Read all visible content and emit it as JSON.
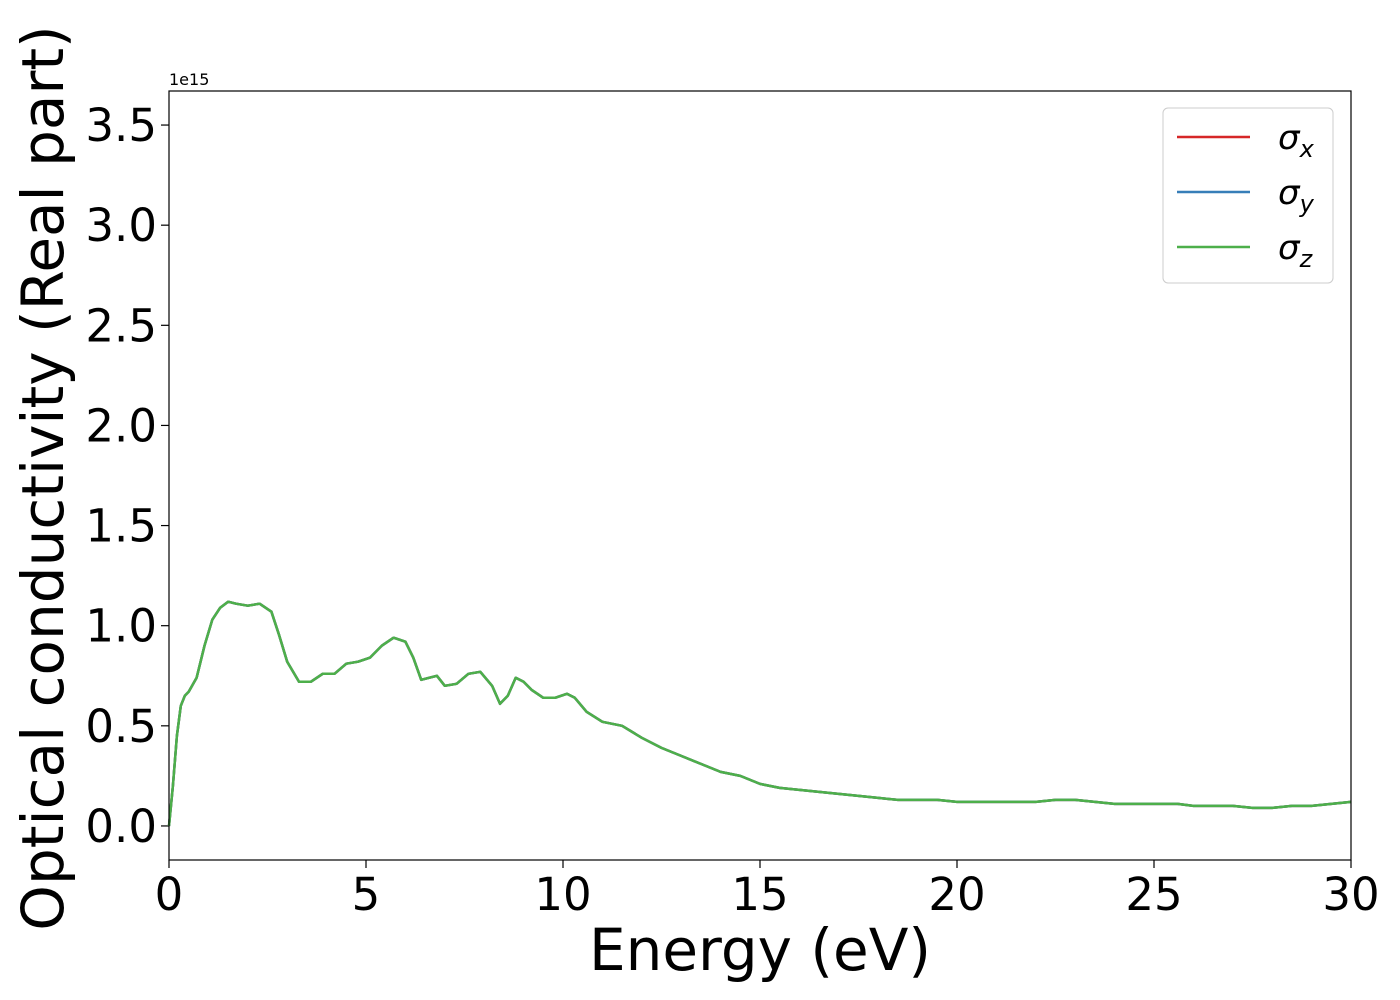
{
  "chart_data": {
    "type": "line",
    "xlabel": "Energy (eV)",
    "ylabel": "Optical conductivity (Real part)",
    "y_offset_text": "1e15",
    "y_scale": 1000000000000000.0,
    "xlim": [
      0,
      30
    ],
    "ylim": [
      -0.17,
      3.67
    ],
    "x_ticks": [
      0,
      5,
      10,
      15,
      20,
      25,
      30
    ],
    "x_tick_labels": [
      "0",
      "5",
      "10",
      "15",
      "20",
      "25",
      "30"
    ],
    "y_ticks": [
      0.0,
      0.5,
      1.0,
      1.5,
      2.0,
      2.5,
      3.0,
      3.5
    ],
    "y_tick_labels": [
      "0.0",
      "0.5",
      "1.0",
      "1.5",
      "2.0",
      "2.5",
      "3.0",
      "3.5"
    ],
    "grid": false,
    "legend_position": "top-right",
    "x": [
      0,
      0.1,
      0.2,
      0.3,
      0.4,
      0.5,
      0.7,
      0.9,
      1.1,
      1.3,
      1.5,
      1.7,
      2.0,
      2.3,
      2.6,
      2.8,
      3.0,
      3.3,
      3.6,
      3.9,
      4.2,
      4.5,
      4.8,
      5.1,
      5.4,
      5.7,
      6.0,
      6.2,
      6.4,
      6.6,
      6.8,
      7.0,
      7.3,
      7.6,
      7.9,
      8.2,
      8.4,
      8.6,
      8.8,
      9.0,
      9.2,
      9.5,
      9.8,
      10.1,
      10.3,
      10.6,
      11.0,
      11.5,
      12.0,
      12.5,
      13.0,
      13.5,
      14.0,
      14.5,
      15.0,
      15.5,
      16.0,
      16.5,
      17.0,
      17.5,
      18.0,
      18.5,
      19.0,
      19.5,
      20.0,
      20.5,
      21.0,
      21.5,
      22.0,
      22.5,
      23.0,
      23.5,
      24.0,
      24.5,
      25.0,
      25.3,
      25.6,
      26.0,
      26.5,
      27.0,
      27.5,
      28.0,
      28.5,
      29.0,
      29.5,
      30.0
    ],
    "series": [
      {
        "name": "σx",
        "legend_main": "σ",
        "legend_sub": "x",
        "color": "#d62728",
        "values": [
          0.0,
          0.2,
          0.45,
          0.6,
          0.65,
          0.67,
          0.74,
          0.9,
          1.03,
          1.09,
          1.12,
          1.11,
          1.1,
          1.11,
          1.07,
          0.95,
          0.82,
          0.72,
          0.72,
          0.76,
          0.76,
          0.81,
          0.82,
          0.84,
          0.9,
          0.94,
          0.92,
          0.84,
          0.73,
          0.74,
          0.75,
          0.7,
          0.71,
          0.76,
          0.77,
          0.7,
          0.61,
          0.65,
          0.74,
          0.72,
          0.68,
          0.64,
          0.64,
          0.66,
          0.64,
          0.57,
          0.52,
          0.5,
          0.44,
          0.39,
          0.35,
          0.31,
          0.27,
          0.25,
          0.21,
          0.19,
          0.18,
          0.17,
          0.16,
          0.15,
          0.14,
          0.13,
          0.13,
          0.13,
          0.12,
          0.12,
          0.12,
          0.12,
          0.12,
          0.13,
          0.13,
          0.12,
          0.11,
          0.11,
          0.11,
          0.11,
          0.11,
          0.1,
          0.1,
          0.1,
          0.09,
          0.09,
          0.1,
          0.1,
          0.11,
          0.12
        ]
      },
      {
        "name": "σy",
        "legend_main": "σ",
        "legend_sub": "y",
        "color": "#377eb8",
        "values": [
          0.0,
          0.2,
          0.45,
          0.6,
          0.65,
          0.67,
          0.74,
          0.9,
          1.03,
          1.09,
          1.12,
          1.11,
          1.1,
          1.11,
          1.07,
          0.95,
          0.82,
          0.72,
          0.72,
          0.76,
          0.76,
          0.81,
          0.82,
          0.84,
          0.9,
          0.94,
          0.92,
          0.84,
          0.73,
          0.74,
          0.75,
          0.7,
          0.71,
          0.76,
          0.77,
          0.7,
          0.61,
          0.65,
          0.74,
          0.72,
          0.68,
          0.64,
          0.64,
          0.66,
          0.64,
          0.57,
          0.52,
          0.5,
          0.44,
          0.39,
          0.35,
          0.31,
          0.27,
          0.25,
          0.21,
          0.19,
          0.18,
          0.17,
          0.16,
          0.15,
          0.14,
          0.13,
          0.13,
          0.13,
          0.12,
          0.12,
          0.12,
          0.12,
          0.12,
          0.13,
          0.13,
          0.12,
          0.11,
          0.11,
          0.11,
          0.11,
          0.11,
          0.1,
          0.1,
          0.1,
          0.09,
          0.09,
          0.1,
          0.1,
          0.11,
          0.12
        ]
      },
      {
        "name": "σz",
        "legend_main": "σ",
        "legend_sub": "z",
        "color": "#4daf4a",
        "values": [
          0.0,
          0.2,
          0.45,
          0.6,
          0.65,
          0.67,
          0.74,
          0.9,
          1.03,
          1.09,
          1.12,
          1.11,
          1.1,
          1.11,
          1.07,
          0.95,
          0.82,
          0.72,
          0.72,
          0.76,
          0.76,
          0.81,
          0.82,
          0.84,
          0.9,
          0.94,
          0.92,
          0.84,
          0.73,
          0.74,
          0.75,
          0.7,
          0.71,
          0.76,
          0.77,
          0.7,
          0.61,
          0.65,
          0.74,
          0.72,
          0.68,
          0.64,
          0.64,
          0.66,
          0.64,
          0.57,
          0.52,
          0.5,
          0.44,
          0.39,
          0.35,
          0.31,
          0.27,
          0.25,
          0.21,
          0.19,
          0.18,
          0.17,
          0.16,
          0.15,
          0.14,
          0.13,
          0.13,
          0.13,
          0.12,
          0.12,
          0.12,
          0.12,
          0.12,
          0.13,
          0.13,
          0.12,
          0.11,
          0.11,
          0.11,
          0.11,
          0.11,
          0.1,
          0.1,
          0.1,
          0.09,
          0.09,
          0.1,
          0.1,
          0.11,
          0.12
        ]
      }
    ]
  }
}
